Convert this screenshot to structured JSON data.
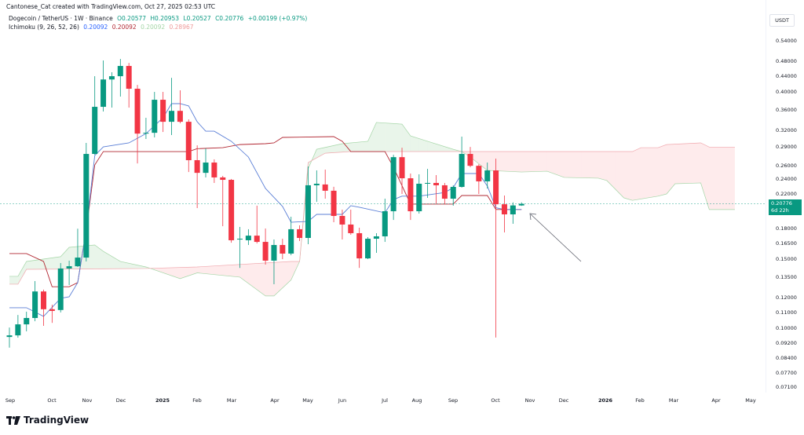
{
  "header": {
    "author_line": "Cantonese_Cat created with TradingView.com, Oct 27, 2025 02:53 UTC",
    "symbol": "Dogecoin / TetherUS · 1W · Binance",
    "open": "O0.20577",
    "high": "H0.20953",
    "low": "L0.20527",
    "close": "C0.20776",
    "change": "+0.00199 (+0.97%)",
    "indicator": "Ichimoku (9, 26, 52, 26)",
    "indicator_values": [
      "0.20092",
      "0.20092",
      "0.20092",
      "0.28967"
    ]
  },
  "price_axis": {
    "currency": "USDT",
    "ticks": [
      "0.54000",
      "0.48000",
      "0.44000",
      "0.40000",
      "0.36000",
      "0.32000",
      "0.29000",
      "0.26000",
      "0.24000",
      "0.22000",
      "0.18000",
      "0.16500",
      "0.15000",
      "0.13500",
      "0.12000",
      "0.11000",
      "0.10000",
      "0.09200",
      "0.08400",
      "0.07700",
      "0.07100"
    ],
    "current_price": "0.20776",
    "countdown": "6d 22h"
  },
  "time_axis": {
    "labels": [
      "Sep",
      "Oct",
      "Nov",
      "Dec",
      "2025",
      "Feb",
      "Mar",
      "Apr",
      "May",
      "Jun",
      "Jul",
      "Aug",
      "Sep",
      "Oct",
      "Nov",
      "Dec",
      "2026",
      "Feb",
      "Mar",
      "Apr",
      "May"
    ]
  },
  "colors": {
    "up": "#089981",
    "down": "#f23645",
    "tenkan": "#5b7fd6",
    "kijun": "#b22833",
    "span_a": "#a5d6a7",
    "span_b": "#f0a8ae",
    "cloud_bull": "rgba(76,175,80,0.12)",
    "cloud_bear": "rgba(242,54,69,0.10)"
  },
  "footer": {
    "logo_text": "TradingView"
  },
  "chart_data": {
    "type": "candlestick",
    "interval": "1W",
    "scale": "log",
    "ylim": [
      0.068,
      0.58
    ],
    "candles_ohlc": [
      [
        0.0952,
        0.1006,
        0.0894,
        0.0961
      ],
      [
        0.0961,
        0.1083,
        0.0948,
        0.1025
      ],
      [
        0.1025,
        0.1104,
        0.0984,
        0.1064
      ],
      [
        0.1064,
        0.1321,
        0.1044,
        0.1243
      ],
      [
        0.1243,
        0.1256,
        0.1016,
        0.112
      ],
      [
        0.112,
        0.115,
        0.1034,
        0.1109
      ],
      [
        0.1115,
        0.1468,
        0.1099,
        0.1422
      ],
      [
        0.1422,
        0.1489,
        0.1291,
        0.1441
      ],
      [
        0.1441,
        0.1796,
        0.1435,
        0.1516
      ],
      [
        0.1516,
        0.2969,
        0.1482,
        0.2783
      ],
      [
        0.2783,
        0.4389,
        0.277,
        0.3668
      ],
      [
        0.3668,
        0.4812,
        0.3569,
        0.4306
      ],
      [
        0.4306,
        0.4492,
        0.3651,
        0.4389
      ],
      [
        0.4389,
        0.4856,
        0.3895,
        0.4661
      ],
      [
        0.4661,
        0.4744,
        0.3651,
        0.4078
      ],
      [
        0.4078,
        0.4172,
        0.2633,
        0.3135
      ],
      [
        0.3135,
        0.344,
        0.3037,
        0.315
      ],
      [
        0.315,
        0.4003,
        0.3066,
        0.3823
      ],
      [
        0.3823,
        0.4003,
        0.3165,
        0.336
      ],
      [
        0.336,
        0.4348,
        0.3109,
        0.3582
      ],
      [
        0.3582,
        0.404,
        0.333,
        0.336
      ],
      [
        0.336,
        0.3408,
        0.2503,
        0.2683
      ],
      [
        0.2683,
        0.2927,
        0.2026,
        0.2491
      ],
      [
        0.2491,
        0.2874,
        0.2425,
        0.2646
      ],
      [
        0.2646,
        0.2696,
        0.2348,
        0.2425
      ],
      [
        0.2425,
        0.2447,
        0.1822,
        0.2391
      ],
      [
        0.2391,
        0.2403,
        0.1654,
        0.1678
      ],
      [
        0.1686,
        0.1814,
        0.1427,
        0.1693
      ],
      [
        0.1678,
        0.179,
        0.1632,
        0.1724
      ],
      [
        0.1724,
        0.2055,
        0.1647,
        0.1662
      ],
      [
        0.1662,
        0.1798,
        0.1455,
        0.1489
      ],
      [
        0.1489,
        0.1686,
        0.1297,
        0.1632
      ],
      [
        0.1632,
        0.1693,
        0.1502,
        0.1552
      ],
      [
        0.1552,
        0.1926,
        0.1537,
        0.179
      ],
      [
        0.179,
        0.1831,
        0.167,
        0.1701
      ],
      [
        0.1701,
        0.2586,
        0.164,
        0.2316
      ],
      [
        0.2316,
        0.2527,
        0.2102,
        0.2337
      ],
      [
        0.2327,
        0.2539,
        0.2141,
        0.2243
      ],
      [
        0.2243,
        0.2295,
        0.1865,
        0.1935
      ],
      [
        0.1935,
        0.2008,
        0.1686,
        0.184
      ],
      [
        0.184,
        0.2008,
        0.1733,
        0.1749
      ],
      [
        0.1749,
        0.1806,
        0.1427,
        0.1509
      ],
      [
        0.1509,
        0.1709,
        0.1502,
        0.1693
      ],
      [
        0.1693,
        0.1749,
        0.1559,
        0.1717
      ],
      [
        0.1717,
        0.2141,
        0.1662,
        0.1989
      ],
      [
        0.1989,
        0.2769,
        0.189,
        0.2731
      ],
      [
        0.2731,
        0.2887,
        0.2201,
        0.2413
      ],
      [
        0.2413,
        0.2481,
        0.189,
        0.1989
      ],
      [
        0.1989,
        0.247,
        0.1962,
        0.2337
      ],
      [
        0.2337,
        0.255,
        0.2151,
        0.2348
      ],
      [
        0.2348,
        0.2459,
        0.2082,
        0.2316
      ],
      [
        0.2316,
        0.2348,
        0.2074,
        0.2141
      ],
      [
        0.2141,
        0.2316,
        0.2055,
        0.2294
      ],
      [
        0.2294,
        0.308,
        0.2284,
        0.2783
      ],
      [
        0.2783,
        0.29,
        0.2574,
        0.2596
      ],
      [
        0.2596,
        0.262,
        0.2201,
        0.237
      ],
      [
        0.237,
        0.2646,
        0.2272,
        0.2527
      ],
      [
        0.2527,
        0.2708,
        0.0949,
        0.2072
      ],
      [
        0.2072,
        0.2181,
        0.1757,
        0.1953
      ],
      [
        0.1953,
        0.2095,
        0.1848,
        0.2058
      ],
      [
        0.20577,
        0.20953,
        0.20527,
        0.20776
      ]
    ],
    "ichimoku": {
      "tenkan": [
        [
          0,
          0.113
        ],
        [
          2,
          0.113
        ],
        [
          4,
          0.1074
        ],
        [
          6,
          0.1194
        ],
        [
          7,
          0.1205
        ],
        [
          8,
          0.1309
        ],
        [
          9,
          0.1782
        ],
        [
          10,
          0.2757
        ],
        [
          11,
          0.29
        ],
        [
          14,
          0.2969
        ],
        [
          16,
          0.3135
        ],
        [
          18,
          0.344
        ],
        [
          19,
          0.3737
        ],
        [
          20,
          0.3737
        ],
        [
          21,
          0.3687
        ],
        [
          22,
          0.336
        ],
        [
          23,
          0.318
        ],
        [
          24,
          0.318
        ],
        [
          26,
          0.2997
        ],
        [
          28,
          0.2733
        ],
        [
          30,
          0.2274
        ],
        [
          32,
          0.2046
        ],
        [
          33,
          0.1865
        ],
        [
          35,
          0.1874
        ],
        [
          36,
          0.1953
        ],
        [
          39,
          0.1953
        ],
        [
          40,
          0.2055
        ],
        [
          41,
          0.2036
        ],
        [
          44,
          0.1971
        ],
        [
          45,
          0.213
        ],
        [
          46,
          0.2173
        ],
        [
          48,
          0.2173
        ],
        [
          51,
          0.222
        ],
        [
          52,
          0.2284
        ],
        [
          53,
          0.2481
        ],
        [
          55,
          0.2481
        ],
        [
          56,
          0.2305
        ],
        [
          57,
          0.203
        ],
        [
          58,
          0.2009
        ],
        [
          60,
          0.2009
        ]
      ],
      "kijun": [
        [
          0,
          0.1552
        ],
        [
          2,
          0.1552
        ],
        [
          4,
          0.1482
        ],
        [
          5,
          0.1278
        ],
        [
          7,
          0.1278
        ],
        [
          8,
          0.1309
        ],
        [
          9,
          0.1782
        ],
        [
          10,
          0.261
        ],
        [
          11,
          0.2822
        ],
        [
          21,
          0.2822
        ],
        [
          22,
          0.287
        ],
        [
          25,
          0.2887
        ],
        [
          27,
          0.294
        ],
        [
          30,
          0.2955
        ],
        [
          31,
          0.2969
        ],
        [
          32,
          0.3066
        ],
        [
          38,
          0.308
        ],
        [
          39,
          0.2997
        ],
        [
          40,
          0.2822
        ],
        [
          44,
          0.2822
        ],
        [
          45,
          0.2574
        ],
        [
          47,
          0.2074
        ],
        [
          52,
          0.2074
        ],
        [
          53,
          0.2181
        ],
        [
          56,
          0.2181
        ],
        [
          57,
          0.2009
        ],
        [
          60,
          0.2009
        ]
      ],
      "span_a": [
        [
          0,
          0.1358
        ],
        [
          1,
          0.1358
        ],
        [
          2,
          0.1482
        ],
        [
          6,
          0.1524
        ],
        [
          7,
          0.161
        ],
        [
          10,
          0.1632
        ],
        [
          11,
          0.1573
        ],
        [
          13,
          0.1482
        ],
        [
          16,
          0.1435
        ],
        [
          20,
          0.134
        ],
        [
          22,
          0.1386
        ],
        [
          27,
          0.1352
        ],
        [
          30,
          0.1211
        ],
        [
          31,
          0.1211
        ],
        [
          33,
          0.133
        ],
        [
          34,
          0.1482
        ],
        [
          35,
          0.2551
        ],
        [
          36,
          0.286
        ],
        [
          39,
          0.2955
        ],
        [
          42,
          0.2997
        ],
        [
          43,
          0.3347
        ],
        [
          46,
          0.3314
        ],
        [
          47,
          0.3094
        ],
        [
          49,
          0.2997
        ],
        [
          52,
          0.286
        ],
        [
          53,
          0.2822
        ],
        [
          54,
          0.2733
        ],
        [
          56,
          0.2527
        ],
        [
          60,
          0.2503
        ],
        [
          63,
          0.2515
        ],
        [
          65,
          0.2425
        ],
        [
          69,
          0.2414
        ],
        [
          70,
          0.2381
        ],
        [
          72,
          0.2151
        ],
        [
          73,
          0.212
        ],
        [
          76,
          0.2173
        ],
        [
          77,
          0.2201
        ],
        [
          78,
          0.2337
        ],
        [
          81,
          0.2348
        ],
        [
          82,
          0.2009
        ],
        [
          85,
          0.2009
        ]
      ],
      "span_b": [
        [
          0,
          0.1297
        ],
        [
          1,
          0.1297
        ],
        [
          2,
          0.1415
        ],
        [
          16,
          0.1422
        ],
        [
          22,
          0.1435
        ],
        [
          33,
          0.1482
        ],
        [
          34,
          0.1482
        ],
        [
          35,
          0.2646
        ],
        [
          37,
          0.2795
        ],
        [
          40,
          0.2822
        ],
        [
          53,
          0.2822
        ],
        [
          73,
          0.2822
        ],
        [
          74,
          0.2887
        ],
        [
          76,
          0.2887
        ],
        [
          77,
          0.294
        ],
        [
          81,
          0.2969
        ],
        [
          82,
          0.2897
        ],
        [
          85,
          0.2897
        ]
      ]
    }
  }
}
